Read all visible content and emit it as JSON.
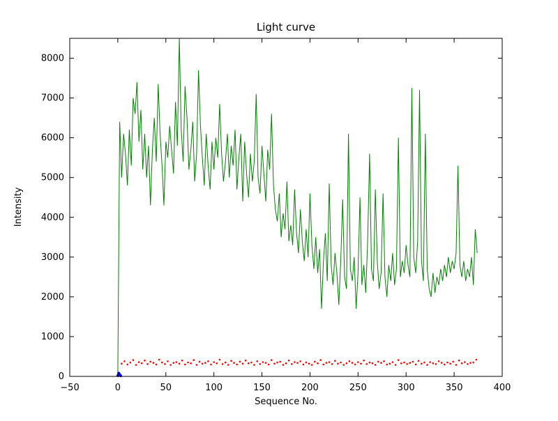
{
  "chart_data": {
    "type": "line",
    "title": "Light curve",
    "xlabel": "Sequence No.",
    "ylabel": "Intensity",
    "xlim": [
      -50,
      400
    ],
    "ylim": [
      0,
      8500
    ],
    "grid": false,
    "legend": null,
    "x_ticks": [
      -50,
      0,
      50,
      100,
      150,
      200,
      250,
      300,
      350,
      400
    ],
    "x_tick_labels": [
      "−50",
      "0",
      "50",
      "100",
      "150",
      "200",
      "250",
      "300",
      "350",
      "400"
    ],
    "y_ticks": [
      0,
      1000,
      2000,
      3000,
      4000,
      5000,
      6000,
      7000,
      8000
    ],
    "y_tick_labels": [
      "0",
      "1000",
      "2000",
      "3000",
      "4000",
      "5000",
      "6000",
      "7000",
      "8000"
    ],
    "series": [
      {
        "name": "intensity-curve",
        "type": "line",
        "color": "#008000",
        "x_start": 0,
        "x_step": 2,
        "values": [
          50,
          6400,
          5000,
          6100,
          5600,
          4800,
          6200,
          5300,
          7000,
          6600,
          7400,
          5900,
          6700,
          5200,
          6100,
          5000,
          5800,
          4300,
          5700,
          6500,
          5400,
          7350,
          6100,
          5300,
          4300,
          5900,
          5500,
          6300,
          5700,
          5100,
          6900,
          5800,
          8500,
          6200,
          5400,
          7300,
          6500,
          5200,
          5700,
          6400,
          4900,
          5600,
          7700,
          6300,
          5500,
          4800,
          6100,
          5300,
          4700,
          5900,
          5200,
          6000,
          5500,
          6850,
          5600,
          4900,
          5400,
          6100,
          5000,
          5800,
          5300,
          6200,
          4700,
          5500,
          6100,
          4400,
          5900,
          5100,
          4500,
          5600,
          4900,
          5400,
          7100,
          5000,
          4600,
          5800,
          5100,
          4400,
          5700,
          5200,
          6600,
          4800,
          4200,
          3900,
          4600,
          3500,
          4100,
          3700,
          4900,
          3400,
          3800,
          3300,
          4700,
          3600,
          3100,
          4200,
          3400,
          2900,
          3700,
          3000,
          4600,
          3300,
          2700,
          3500,
          2600,
          3200,
          1700,
          2900,
          3600,
          2400,
          4850,
          2800,
          2300,
          3100,
          2600,
          1800,
          2900,
          4450,
          2500,
          2200,
          6100,
          2700,
          2400,
          3000,
          1700,
          2600,
          4500,
          2300,
          2800,
          2100,
          3400,
          5600,
          2700,
          2400,
          4700,
          2900,
          2200,
          2600,
          4600,
          2500,
          2000,
          2800,
          2400,
          3100,
          2300,
          2700,
          6000,
          2500,
          2900,
          2600,
          3300,
          2800,
          2500,
          7250,
          3000,
          2600,
          3400,
          7200,
          2900,
          2400,
          6100,
          2700,
          2200,
          2000,
          2600,
          2100,
          2500,
          2300,
          2700,
          2400,
          2800,
          2500,
          3000,
          2600,
          2900,
          2700,
          3100,
          5300,
          2800,
          2500,
          2900,
          2400,
          2700,
          2500,
          3000,
          2300,
          3700,
          3100
        ]
      },
      {
        "name": "background-level",
        "type": "scatter",
        "color": "#ff0000",
        "x_start": 4,
        "x_step": 3,
        "values": [
          320,
          380,
          300,
          350,
          410,
          290,
          360,
          330,
          400,
          310,
          370,
          340,
          300,
          420,
          350,
          310,
          380,
          290,
          340,
          360,
          320,
          400,
          300,
          350,
          330,
          410,
          290,
          370,
          320,
          340,
          380,
          300,
          360,
          330,
          420,
          310,
          350,
          290,
          390,
          340,
          300,
          370,
          320,
          400,
          330,
          350,
          290,
          380,
          310,
          360,
          340,
          300,
          410,
          320,
          350,
          370,
          290,
          330,
          400,
          310,
          360,
          340,
          380,
          300,
          350,
          320,
          290,
          370,
          330,
          410,
          300,
          340,
          360,
          310,
          390,
          320,
          350,
          290,
          330,
          380,
          340,
          300,
          360,
          320,
          400,
          310,
          350,
          330,
          290,
          370,
          340,
          380,
          300,
          320,
          360,
          290,
          410,
          330,
          350,
          310,
          340,
          370,
          300,
          390,
          320,
          350,
          290,
          360,
          330,
          310,
          380,
          340,
          300,
          350,
          320,
          370,
          290,
          400,
          330,
          360,
          310,
          340,
          350,
          420
        ]
      },
      {
        "name": "start-marker",
        "type": "scatter",
        "color": "#0000ff",
        "points": [
          [
            0,
            20
          ],
          [
            1,
            80
          ],
          [
            2,
            45
          ],
          [
            3,
            15
          ]
        ]
      }
    ]
  }
}
